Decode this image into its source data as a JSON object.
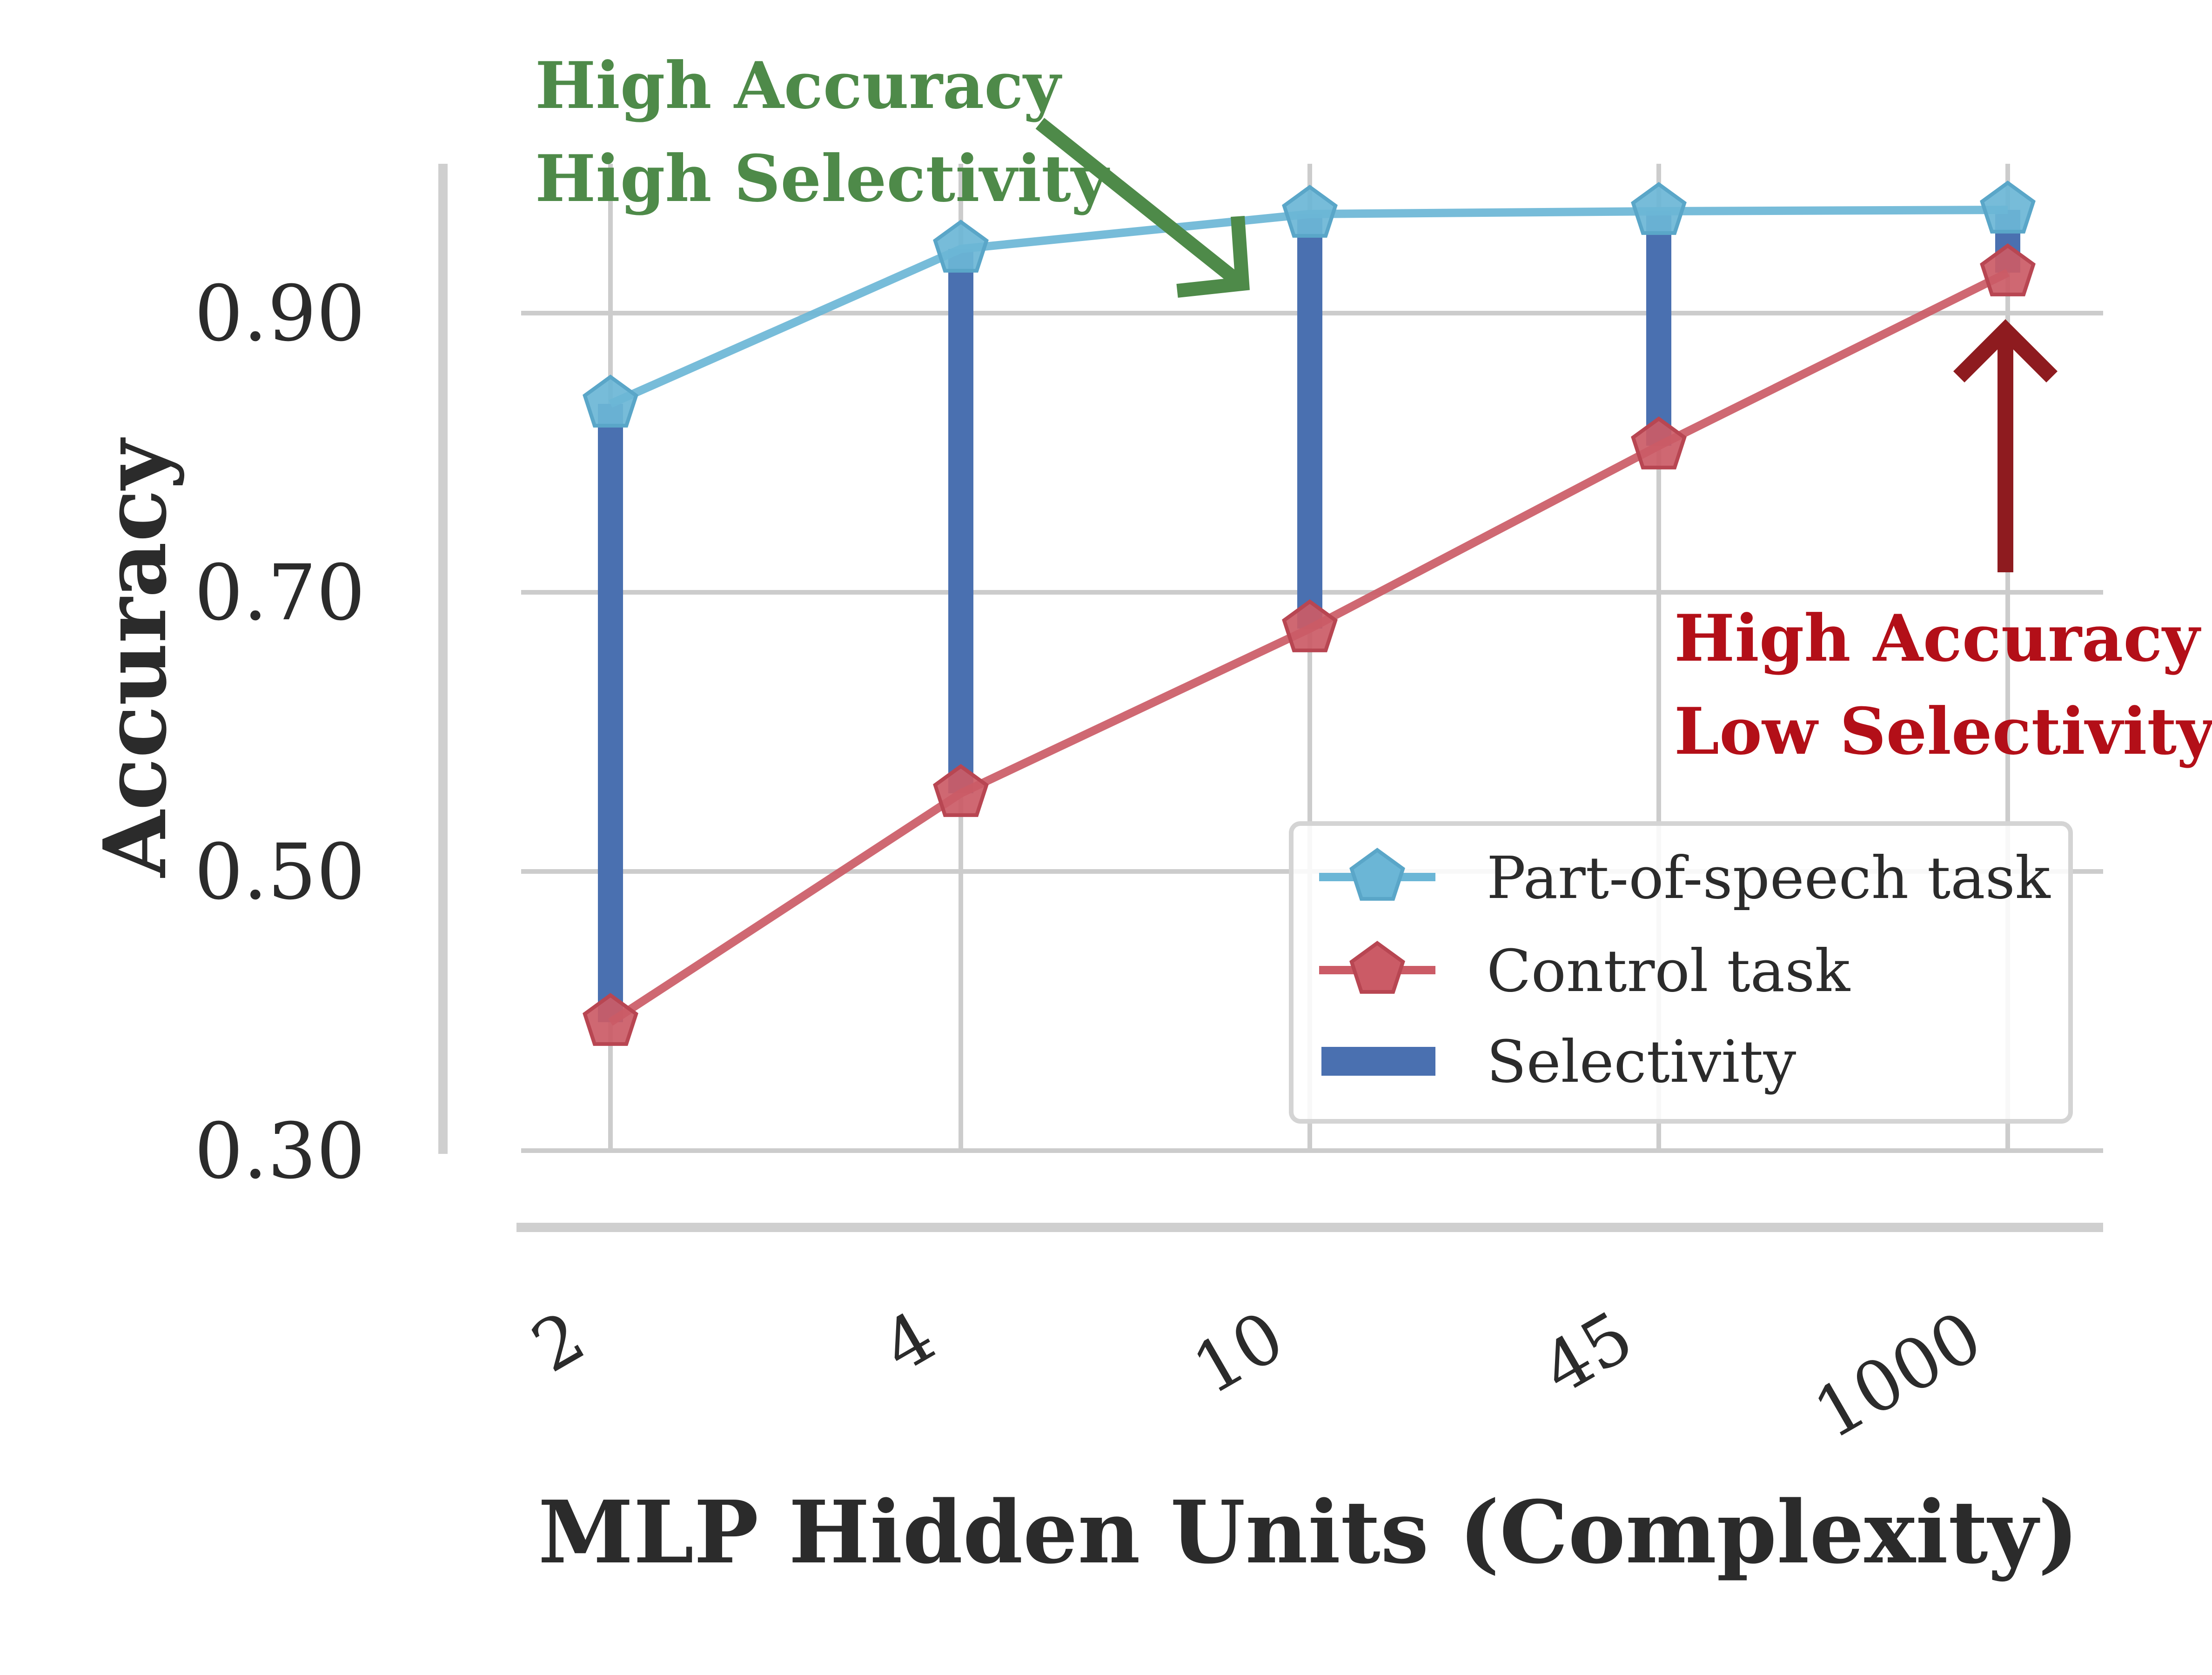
{
  "chart_data": {
    "type": "line",
    "xlabel": "MLP Hidden Units (Complexity)",
    "ylabel": "Accuracy",
    "categories": [
      "2",
      "4",
      "10",
      "45",
      "1000"
    ],
    "yticks": [
      "0.30",
      "0.50",
      "0.70",
      "0.90"
    ],
    "ylim": [
      0.3,
      1.0
    ],
    "grid": true,
    "legend_position": "lower-right",
    "series": [
      {
        "name": "Part-of-speech task",
        "values": [
          0.835,
          0.946,
          0.971,
          0.973,
          0.974
        ],
        "color": "#6bb6d6",
        "marker": "pentagon"
      },
      {
        "name": "Control task",
        "values": [
          0.392,
          0.556,
          0.674,
          0.805,
          0.929
        ],
        "color": "#cb5b66",
        "marker": "pentagon"
      }
    ],
    "bars": {
      "name": "Selectivity",
      "color": "#4a70b0"
    },
    "annotations": [
      {
        "lines": [
          "High Accuracy",
          "High Selectivity"
        ],
        "color": "#4e8a49"
      },
      {
        "lines": [
          "High Accuracy",
          "Low Selectivity"
        ],
        "color": "#b30f18"
      }
    ]
  }
}
